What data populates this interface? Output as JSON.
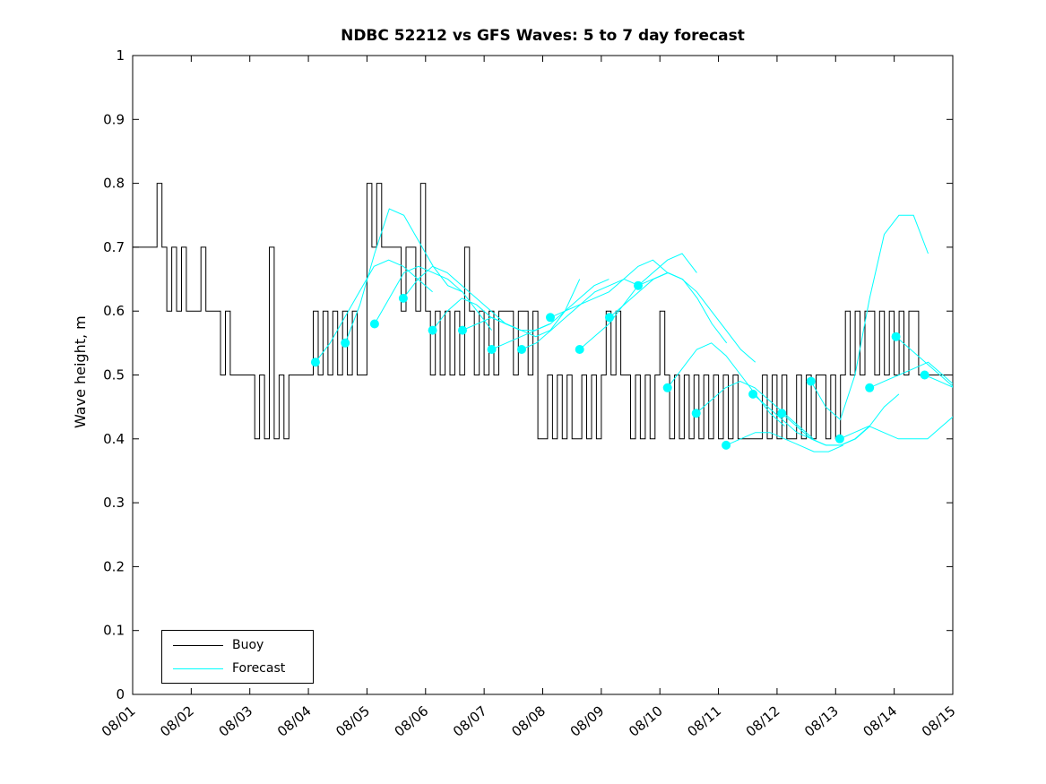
{
  "title": "NDBC 52212 vs GFS Waves: 5 to 7 day forecast",
  "ylabel": "Wave height, m",
  "legend": [
    {
      "label": "Buoy",
      "color": "#000000"
    },
    {
      "label": "Forecast",
      "color": "#00ffff"
    }
  ],
  "chart_data": {
    "type": "line",
    "title": "NDBC 52212 vs GFS Waves: 5 to 7 day forecast",
    "xlabel": "",
    "ylabel": "Wave height, m",
    "ylim": [
      0,
      1
    ],
    "x_days_range": [
      0,
      14
    ],
    "grid": false,
    "legend_position": "bottom-left-inside",
    "xtick_labels": [
      "08/01",
      "08/02",
      "08/03",
      "08/04",
      "08/05",
      "08/06",
      "08/07",
      "08/08",
      "08/09",
      "08/10",
      "08/11",
      "08/12",
      "08/13",
      "08/14",
      "08/15"
    ],
    "ytick_labels": [
      "0",
      "0.1",
      "0.2",
      "0.3",
      "0.4",
      "0.5",
      "0.6",
      "0.7",
      "0.8",
      "0.9",
      "1"
    ],
    "series": [
      {
        "name": "Buoy",
        "color": "#000000",
        "x_start": 0,
        "x_step": 0.0833333,
        "values": [
          0.7,
          0.7,
          0.7,
          0.7,
          0.7,
          0.8,
          0.7,
          0.6,
          0.7,
          0.6,
          0.7,
          0.6,
          0.6,
          0.6,
          0.7,
          0.6,
          0.6,
          0.6,
          0.5,
          0.6,
          0.5,
          0.5,
          0.5,
          0.5,
          0.5,
          0.4,
          0.5,
          0.4,
          0.7,
          0.4,
          0.5,
          0.4,
          0.5,
          0.5,
          0.5,
          0.5,
          0.5,
          0.6,
          0.5,
          0.6,
          0.5,
          0.6,
          0.5,
          0.6,
          0.5,
          0.6,
          0.5,
          0.5,
          0.8,
          0.7,
          0.8,
          0.7,
          0.7,
          0.7,
          0.7,
          0.6,
          0.7,
          0.7,
          0.6,
          0.8,
          0.6,
          0.5,
          0.6,
          0.5,
          0.6,
          0.5,
          0.6,
          0.5,
          0.7,
          0.6,
          0.5,
          0.6,
          0.5,
          0.6,
          0.5,
          0.6,
          0.6,
          0.6,
          0.5,
          0.6,
          0.6,
          0.5,
          0.6,
          0.4,
          0.4,
          0.5,
          0.4,
          0.5,
          0.4,
          0.5,
          0.4,
          0.4,
          0.5,
          0.4,
          0.5,
          0.4,
          0.5,
          0.6,
          0.5,
          0.6,
          0.5,
          0.5,
          0.4,
          0.5,
          0.4,
          0.5,
          0.4,
          0.5,
          0.6,
          0.5,
          0.4,
          0.5,
          0.4,
          0.5,
          0.4,
          0.5,
          0.4,
          0.5,
          0.4,
          0.5,
          0.4,
          0.5,
          0.4,
          0.5,
          0.4,
          0.4,
          0.4,
          0.4,
          0.4,
          0.5,
          0.4,
          0.5,
          0.4,
          0.5,
          0.4,
          0.4,
          0.5,
          0.4,
          0.5,
          0.4,
          0.5,
          0.5,
          0.4,
          0.5,
          0.4,
          0.5,
          0.6,
          0.5,
          0.6,
          0.5,
          0.6,
          0.6,
          0.5,
          0.6,
          0.5,
          0.6,
          0.5,
          0.6,
          0.5,
          0.6,
          0.6,
          0.5,
          0.5,
          0.5,
          0.5,
          0.5,
          0.5,
          0.5,
          0.5
        ]
      },
      {
        "name": "Forecast",
        "color": "#00ffff",
        "marker": "filled-circle-at-segment-start",
        "segments": [
          {
            "t0": 3.12,
            "dt": 0.25,
            "values": [
              0.52,
              0.55,
              0.59,
              0.63,
              0.67,
              0.68,
              0.67,
              0.65,
              0.63
            ]
          },
          {
            "t0": 3.63,
            "dt": 0.25,
            "values": [
              0.55,
              0.61,
              0.69,
              0.76,
              0.75,
              0.71,
              0.67,
              0.64,
              0.63
            ]
          },
          {
            "t0": 4.13,
            "dt": 0.25,
            "values": [
              0.58,
              0.62,
              0.66,
              0.67,
              0.66,
              0.65,
              0.63,
              0.6,
              0.57
            ]
          },
          {
            "t0": 4.62,
            "dt": 0.25,
            "values": [
              0.62,
              0.65,
              0.67,
              0.66,
              0.64,
              0.62,
              0.6,
              0.58,
              0.57
            ]
          },
          {
            "t0": 5.12,
            "dt": 0.25,
            "values": [
              0.57,
              0.6,
              0.62,
              0.61,
              0.59,
              0.58,
              0.57,
              0.57,
              0.58
            ]
          },
          {
            "t0": 5.63,
            "dt": 0.25,
            "values": [
              0.57,
              0.58,
              0.59,
              0.58,
              0.57,
              0.56,
              0.57,
              0.6,
              0.65
            ]
          },
          {
            "t0": 6.13,
            "dt": 0.25,
            "values": [
              0.54,
              0.55,
              0.56,
              0.57,
              0.58,
              0.6,
              0.62,
              0.64,
              0.65
            ]
          },
          {
            "t0": 6.64,
            "dt": 0.25,
            "values": [
              0.54,
              0.55,
              0.57,
              0.59,
              0.61,
              0.63,
              0.64,
              0.65,
              0.64
            ]
          },
          {
            "t0": 7.13,
            "dt": 0.25,
            "values": [
              0.59,
              0.6,
              0.61,
              0.62,
              0.63,
              0.65,
              0.67,
              0.68,
              0.66
            ]
          },
          {
            "t0": 7.63,
            "dt": 0.25,
            "values": [
              0.54,
              0.56,
              0.58,
              0.61,
              0.64,
              0.66,
              0.68,
              0.69,
              0.66
            ]
          },
          {
            "t0": 8.14,
            "dt": 0.25,
            "values": [
              0.59,
              0.61,
              0.63,
              0.65,
              0.66,
              0.65,
              0.62,
              0.58,
              0.55
            ]
          },
          {
            "t0": 8.63,
            "dt": 0.25,
            "values": [
              0.64,
              0.65,
              0.66,
              0.65,
              0.63,
              0.6,
              0.57,
              0.54,
              0.52
            ]
          },
          {
            "t0": 9.13,
            "dt": 0.25,
            "values": [
              0.48,
              0.51,
              0.54,
              0.55,
              0.53,
              0.5,
              0.47,
              0.44,
              0.42
            ]
          },
          {
            "t0": 9.62,
            "dt": 0.25,
            "values": [
              0.44,
              0.46,
              0.48,
              0.49,
              0.48,
              0.46,
              0.44,
              0.42,
              0.4
            ]
          },
          {
            "t0": 10.13,
            "dt": 0.25,
            "values": [
              0.39,
              0.4,
              0.41,
              0.41,
              0.4,
              0.39,
              0.38,
              0.38,
              0.39
            ]
          },
          {
            "t0": 10.59,
            "dt": 0.25,
            "values": [
              0.47,
              0.45,
              0.43,
              0.41,
              0.4,
              0.39,
              0.39,
              0.4,
              0.42
            ]
          },
          {
            "t0": 11.08,
            "dt": 0.25,
            "values": [
              0.44,
              0.42,
              0.4,
              0.39,
              0.39,
              0.4,
              0.42,
              0.45,
              0.47
            ]
          },
          {
            "t0": 11.58,
            "dt": 0.25,
            "values": [
              0.49,
              0.45,
              0.43,
              0.5,
              0.62,
              0.72,
              0.75,
              0.75,
              0.69
            ]
          },
          {
            "t0": 12.07,
            "dt": 0.25,
            "values": [
              0.4,
              0.41,
              0.42,
              0.41,
              0.4,
              0.4,
              0.4,
              0.42,
              0.44
            ]
          },
          {
            "t0": 12.58,
            "dt": 0.25,
            "values": [
              0.48,
              0.49,
              0.5,
              0.51,
              0.52,
              0.5,
              0.48,
              0.47,
              0.46
            ]
          },
          {
            "t0": 13.03,
            "dt": 0.25,
            "values": [
              0.56,
              0.54,
              0.52,
              0.5,
              0.48,
              0.47,
              0.47,
              0.46,
              0.46
            ]
          },
          {
            "t0": 13.52,
            "dt": 0.25,
            "values": [
              0.5,
              0.49,
              0.48,
              0.47,
              0.46,
              0.45,
              0.45,
              0.45,
              0.45
            ]
          }
        ]
      }
    ]
  }
}
